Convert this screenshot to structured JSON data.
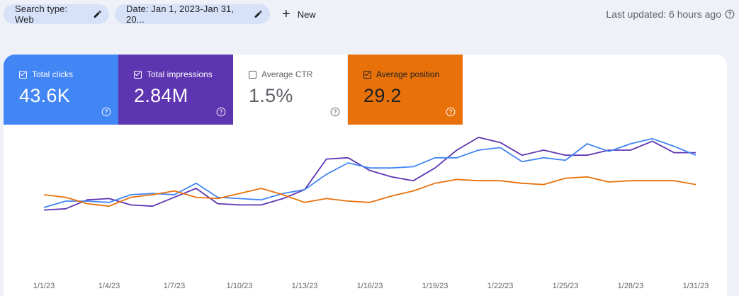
{
  "filters": {
    "search_type": "Search type: Web",
    "date": "Date: Jan 1, 2023-Jan 31, 20...",
    "new_label": "New"
  },
  "last_updated": "Last updated: 6 hours ago",
  "metrics": {
    "clicks": {
      "label": "Total clicks",
      "value": "43.6K",
      "checked": true,
      "color": "#4285f4"
    },
    "impressions": {
      "label": "Total impressions",
      "value": "2.84M",
      "checked": true,
      "color": "#5e35b1"
    },
    "ctr": {
      "label": "Average CTR",
      "value": "1.5%",
      "checked": false,
      "color": "#ffffff"
    },
    "position": {
      "label": "Average position",
      "value": "29.2",
      "checked": true,
      "color": "#e8710a"
    }
  },
  "icons": {
    "edit": "pencil-icon",
    "add": "plus-icon",
    "help": "help-circle-icon",
    "checkbox": "checkbox-icon"
  },
  "chart_data": {
    "type": "line",
    "x": [
      "1/1/23",
      "1/2/23",
      "1/3/23",
      "1/4/23",
      "1/5/23",
      "1/6/23",
      "1/7/23",
      "1/8/23",
      "1/9/23",
      "1/10/23",
      "1/11/23",
      "1/12/23",
      "1/13/23",
      "1/14/23",
      "1/15/23",
      "1/16/23",
      "1/17/23",
      "1/18/23",
      "1/19/23",
      "1/20/23",
      "1/21/23",
      "1/22/23",
      "1/23/23",
      "1/24/23",
      "1/25/23",
      "1/26/23",
      "1/27/23",
      "1/28/23",
      "1/29/23",
      "1/30/23",
      "1/31/23"
    ],
    "tick_labels": [
      "1/1/23",
      "1/4/23",
      "1/7/23",
      "1/10/23",
      "1/13/23",
      "1/16/23",
      "1/19/23",
      "1/22/23",
      "1/25/23",
      "1/28/23",
      "1/31/23"
    ],
    "tick_indices": [
      0,
      3,
      6,
      9,
      12,
      15,
      18,
      21,
      24,
      27,
      30
    ],
    "series": [
      {
        "key": "impressions",
        "color": "#5e35b1",
        "values": [
          0.38,
          0.39,
          0.46,
          0.47,
          0.42,
          0.41,
          0.48,
          0.55,
          0.43,
          0.42,
          0.42,
          0.47,
          0.54,
          0.78,
          0.79,
          0.69,
          0.64,
          0.61,
          0.71,
          0.85,
          0.95,
          0.91,
          0.81,
          0.85,
          0.81,
          0.81,
          0.85,
          0.85,
          0.92,
          0.83,
          0.83
        ]
      },
      {
        "key": "clicks",
        "color": "#4285f4",
        "values": [
          0.4,
          0.45,
          0.45,
          0.44,
          0.5,
          0.51,
          0.5,
          0.59,
          0.48,
          0.47,
          0.46,
          0.51,
          0.54,
          0.66,
          0.75,
          0.71,
          0.71,
          0.72,
          0.79,
          0.79,
          0.85,
          0.87,
          0.76,
          0.79,
          0.77,
          0.9,
          0.84,
          0.9,
          0.94,
          0.88,
          0.81
        ]
      },
      {
        "key": "position",
        "color": "#e8710a",
        "values": [
          0.5,
          0.48,
          0.43,
          0.41,
          0.48,
          0.5,
          0.53,
          0.48,
          0.47,
          0.51,
          0.55,
          0.5,
          0.44,
          0.47,
          0.45,
          0.44,
          0.49,
          0.53,
          0.59,
          0.62,
          0.61,
          0.61,
          0.59,
          0.58,
          0.63,
          0.64,
          0.6,
          0.61,
          0.61,
          0.61,
          0.58
        ]
      }
    ]
  }
}
